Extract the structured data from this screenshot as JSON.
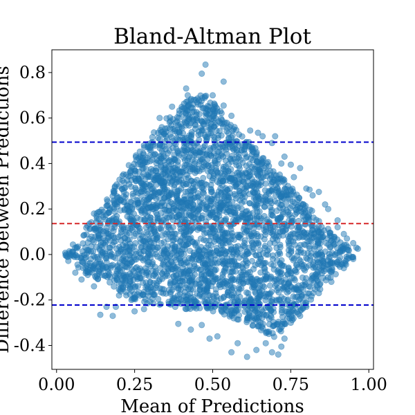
{
  "chart_data": {
    "type": "scatter",
    "title": "Bland-Altman Plot",
    "xlabel": "Mean of Predictions",
    "ylabel": "Difference between Predictions",
    "xlim": [
      -0.015,
      1.015
    ],
    "ylim": [
      -0.505,
      0.9
    ],
    "x_ticks": [
      {
        "value": 0.0,
        "label": "0.00"
      },
      {
        "value": 0.25,
        "label": "0.25"
      },
      {
        "value": 0.5,
        "label": "0.50"
      },
      {
        "value": 0.75,
        "label": "0.75"
      },
      {
        "value": 1.0,
        "label": "1.00"
      }
    ],
    "y_ticks": [
      {
        "value": -0.4,
        "label": "-0.4"
      },
      {
        "value": -0.2,
        "label": "-0.2"
      },
      {
        "value": 0.0,
        "label": "0.0"
      },
      {
        "value": 0.2,
        "label": "0.2"
      },
      {
        "value": 0.4,
        "label": "0.4"
      },
      {
        "value": 0.6,
        "label": "0.6"
      },
      {
        "value": 0.8,
        "label": "0.8"
      }
    ],
    "grid": false,
    "reference_lines": [
      {
        "name": "upper limit of agreement",
        "value": 0.494,
        "color": "#0000cc",
        "style": "dashed"
      },
      {
        "name": "mean difference",
        "value": 0.136,
        "color": "#d62728",
        "style": "dashed"
      },
      {
        "name": "lower limit of agreement",
        "value": -0.222,
        "color": "#0000cc",
        "style": "dashed"
      }
    ],
    "point_color": "#1f77b4",
    "envelope": [
      [
        0.02,
        0.0
      ],
      [
        0.05,
        0.04
      ],
      [
        0.1,
        0.13
      ],
      [
        0.15,
        0.22
      ],
      [
        0.2,
        0.33
      ],
      [
        0.25,
        0.43
      ],
      [
        0.3,
        0.52
      ],
      [
        0.35,
        0.6
      ],
      [
        0.4,
        0.66
      ],
      [
        0.45,
        0.7
      ],
      [
        0.48,
        0.72
      ],
      [
        0.5,
        0.68
      ],
      [
        0.55,
        0.58
      ],
      [
        0.6,
        0.52
      ],
      [
        0.65,
        0.45
      ],
      [
        0.7,
        0.38
      ],
      [
        0.75,
        0.3
      ],
      [
        0.8,
        0.22
      ],
      [
        0.85,
        0.15
      ],
      [
        0.9,
        0.08
      ],
      [
        0.95,
        0.02
      ],
      [
        0.96,
        0.0
      ],
      [
        0.95,
        -0.02
      ],
      [
        0.9,
        -0.08
      ],
      [
        0.85,
        -0.15
      ],
      [
        0.8,
        -0.23
      ],
      [
        0.75,
        -0.3
      ],
      [
        0.72,
        -0.34
      ],
      [
        0.7,
        -0.37
      ],
      [
        0.65,
        -0.33
      ],
      [
        0.6,
        -0.3
      ],
      [
        0.55,
        -0.27
      ],
      [
        0.5,
        -0.25
      ],
      [
        0.45,
        -0.24
      ],
      [
        0.4,
        -0.24
      ],
      [
        0.35,
        -0.22
      ],
      [
        0.3,
        -0.22
      ],
      [
        0.25,
        -0.2
      ],
      [
        0.2,
        -0.17
      ],
      [
        0.15,
        -0.12
      ],
      [
        0.1,
        -0.09
      ],
      [
        0.05,
        -0.05
      ],
      [
        0.02,
        0.0
      ]
    ],
    "points": [
      [
        0.477,
        0.835
      ],
      [
        0.465,
        0.795
      ],
      [
        0.535,
        0.76
      ],
      [
        0.415,
        0.73
      ],
      [
        0.535,
        0.655
      ],
      [
        0.56,
        0.61
      ],
      [
        0.62,
        0.545
      ],
      [
        0.645,
        0.535
      ],
      [
        0.7,
        0.52
      ],
      [
        0.73,
        0.43
      ],
      [
        0.75,
        0.395
      ],
      [
        0.78,
        0.38
      ],
      [
        0.81,
        0.285
      ],
      [
        0.84,
        0.275
      ],
      [
        0.86,
        0.22
      ],
      [
        0.9,
        0.15
      ],
      [
        0.92,
        0.09
      ],
      [
        0.95,
        0.05
      ],
      [
        0.965,
        0.025
      ],
      [
        0.03,
        0.0
      ],
      [
        0.06,
        0.03
      ],
      [
        0.06,
        -0.08
      ],
      [
        0.08,
        -0.11
      ],
      [
        0.1,
        -0.09
      ],
      [
        0.12,
        -0.14
      ],
      [
        0.14,
        -0.265
      ],
      [
        0.16,
        -0.23
      ],
      [
        0.18,
        -0.27
      ],
      [
        0.19,
        -0.23
      ],
      [
        0.2,
        -0.18
      ],
      [
        0.24,
        -0.2
      ],
      [
        0.25,
        -0.25
      ],
      [
        0.28,
        -0.24
      ],
      [
        0.33,
        -0.22
      ],
      [
        0.38,
        -0.23
      ],
      [
        0.39,
        -0.305
      ],
      [
        0.43,
        -0.33
      ],
      [
        0.465,
        -0.31
      ],
      [
        0.49,
        -0.37
      ],
      [
        0.515,
        -0.36
      ],
      [
        0.56,
        -0.43
      ],
      [
        0.58,
        -0.39
      ],
      [
        0.61,
        -0.45
      ],
      [
        0.64,
        -0.42
      ],
      [
        0.67,
        -0.39
      ],
      [
        0.69,
        -0.43
      ],
      [
        0.71,
        -0.44
      ],
      [
        0.72,
        -0.405
      ],
      [
        0.73,
        -0.37
      ],
      [
        0.75,
        -0.3
      ],
      [
        0.78,
        -0.27
      ],
      [
        0.8,
        -0.23
      ],
      [
        0.84,
        -0.17
      ],
      [
        0.88,
        -0.12
      ],
      [
        0.92,
        -0.06
      ],
      [
        0.95,
        -0.02
      ],
      [
        0.12,
        0.18
      ],
      [
        0.2,
        0.3
      ],
      [
        0.28,
        0.48
      ],
      [
        0.33,
        0.6
      ],
      [
        0.37,
        0.65
      ],
      [
        0.42,
        0.7
      ],
      [
        0.44,
        0.68
      ],
      [
        0.5,
        0.7
      ],
      [
        0.57,
        0.56
      ],
      [
        0.66,
        0.52
      ],
      [
        0.69,
        0.49
      ],
      [
        0.72,
        0.4
      ],
      [
        0.76,
        0.34
      ],
      [
        0.8,
        0.29
      ],
      [
        0.82,
        0.26
      ],
      [
        0.87,
        0.2
      ],
      [
        0.9,
        0.12
      ],
      [
        0.93,
        0.07
      ],
      [
        0.96,
        0.03
      ]
    ]
  }
}
